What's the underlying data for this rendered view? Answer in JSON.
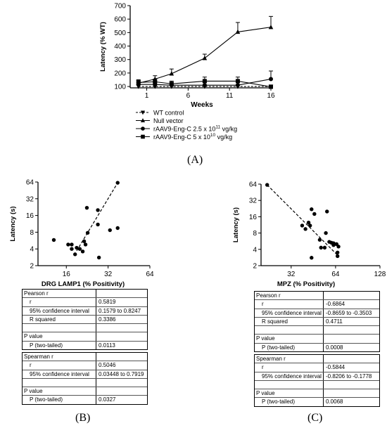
{
  "panels": {
    "A": "(A)",
    "B": "(B)",
    "C": "(C)"
  },
  "chart_data": [
    {
      "id": "A",
      "type": "line",
      "xlabel": "Weeks",
      "ylabel": "Latency (% WT)",
      "x_ticks": [
        1,
        6,
        11,
        16
      ],
      "y_ticks": [
        100,
        200,
        300,
        400,
        500,
        600,
        700
      ],
      "ylim": [
        90,
        700
      ],
      "xlim": [
        -1,
        16
      ],
      "grid": false,
      "legend_position": "below",
      "series": [
        {
          "name": "WT control",
          "marker": "triangle-down",
          "dashed": true,
          "x": [
            0,
            2,
            4,
            8,
            12,
            16
          ],
          "y": [
            100,
            100,
            100,
            100,
            100,
            100
          ],
          "err": [
            0,
            0,
            0,
            0,
            0,
            0
          ]
        },
        {
          "name": "Null vector",
          "marker": "triangle-up",
          "dashed": false,
          "x": [
            0,
            2,
            4,
            8,
            12,
            16
          ],
          "y": [
            125,
            155,
            195,
            310,
            505,
            540
          ],
          "err": [
            20,
            25,
            35,
            30,
            70,
            80
          ]
        },
        {
          "name": "rAAV9-Eng-C 2.5 x 10^11 vg/kg",
          "name_base": "rAAV9-Eng-C 2.5 x 10",
          "name_exp": "11",
          "name_tail": " vg/kg",
          "marker": "circle",
          "dashed": false,
          "x": [
            0,
            2,
            4,
            8,
            12,
            16
          ],
          "y": [
            115,
            115,
            110,
            110,
            110,
            155
          ],
          "err": [
            15,
            15,
            20,
            20,
            20,
            60
          ]
        },
        {
          "name": "rAAV9-Eng-C 5 x 10^10 vg/kg",
          "name_base": "rAAV9-Eng-C 5 x 10",
          "name_exp": "10",
          "name_tail": " vg/kg",
          "marker": "square",
          "dashed": false,
          "x": [
            0,
            2,
            4,
            8,
            12,
            16
          ],
          "y": [
            130,
            135,
            120,
            140,
            140,
            98
          ],
          "err": [
            20,
            20,
            20,
            30,
            30,
            10
          ]
        }
      ]
    },
    {
      "id": "B",
      "type": "scatter",
      "xlabel": "DRG LAMP1 (% Positivity)",
      "ylabel": "Latency (s)",
      "scale": "log2",
      "x_ticks": [
        16,
        32,
        64
      ],
      "y_ticks": [
        2,
        4,
        8,
        16,
        32,
        64
      ],
      "xlim": [
        10,
        64
      ],
      "ylim": [
        2,
        64
      ],
      "points": [
        [
          13,
          5.8
        ],
        [
          16.5,
          4.8
        ],
        [
          17.5,
          4.8
        ],
        [
          17.5,
          4
        ],
        [
          18.5,
          3.2
        ],
        [
          19,
          4.2
        ],
        [
          20,
          4
        ],
        [
          21,
          3.6
        ],
        [
          21.5,
          5.5
        ],
        [
          22,
          4.8
        ],
        [
          22.5,
          22
        ],
        [
          22.8,
          7.8
        ],
        [
          27,
          20
        ],
        [
          27,
          11
        ],
        [
          27.5,
          2.8
        ],
        [
          33,
          8.7
        ],
        [
          37.5,
          9.5
        ],
        [
          37.5,
          62
        ]
      ],
      "fit_line": {
        "x": [
          19,
          37.5
        ],
        "y": [
          3.7,
          62
        ]
      }
    },
    {
      "id": "C",
      "type": "scatter",
      "xlabel": "MPZ (% Positivity)",
      "ylabel": "Latency (s)",
      "scale": "log2",
      "x_ticks": [
        32,
        64,
        128
      ],
      "y_ticks": [
        2,
        4,
        8,
        16,
        32,
        64
      ],
      "xlim": [
        20,
        128
      ],
      "ylim": [
        2,
        64
      ],
      "points": [
        [
          22,
          62
        ],
        [
          38,
          11
        ],
        [
          40,
          9.5
        ],
        [
          42,
          12.5
        ],
        [
          43,
          11
        ],
        [
          44,
          22
        ],
        [
          44,
          2.8
        ],
        [
          46,
          18
        ],
        [
          50,
          6
        ],
        [
          51,
          4.3
        ],
        [
          54,
          4.3
        ],
        [
          55,
          8
        ],
        [
          56,
          20
        ],
        [
          58,
          5.5
        ],
        [
          60,
          5.3
        ],
        [
          62,
          5.2
        ],
        [
          62,
          4.8
        ],
        [
          65,
          5
        ],
        [
          66,
          3.5
        ],
        [
          66,
          3
        ],
        [
          67,
          4.5
        ]
      ],
      "fit_line": {
        "x": [
          22,
          67
        ],
        "y": [
          62,
          3
        ]
      }
    }
  ],
  "stats": {
    "B": {
      "pearson": {
        "title": "Pearson r",
        "r_label": "r",
        "r_value": "0.5819",
        "ci_label": "95% confidence interval",
        "ci_value": "0.1579 to 0.8247",
        "rsq_label": "R squared",
        "rsq_value": "0.3386",
        "p_title": "P value",
        "p_label": "P (two-tailed)",
        "p_value": "0.0113"
      },
      "spearman": {
        "title": "Spearman r",
        "r_label": "r",
        "r_value": "0.5046",
        "ci_label": "95% confidence interval",
        "ci_value": "0.03448 to 0.7919",
        "p_title": "P value",
        "p_label": "P (two-tailed)",
        "p_value": "0.0327"
      }
    },
    "C": {
      "pearson": {
        "title": "Pearson r",
        "r_label": "r",
        "r_value": "-0.6864",
        "ci_label": "95% confidence interval",
        "ci_value": "-0.8659 to -0.3503",
        "rsq_label": "R squared",
        "rsq_value": "0.4711",
        "p_title": "P value",
        "p_label": "P (two-tailed)",
        "p_value": "0.0008"
      },
      "spearman": {
        "title": "Spearman r",
        "r_label": "r",
        "r_value": "-0.5844",
        "ci_label": "95% confidence interval",
        "ci_value": "-0.8206 to -0.1778",
        "p_title": "P value",
        "p_label": "P (two-tailed)",
        "p_value": "0.0068"
      }
    }
  }
}
